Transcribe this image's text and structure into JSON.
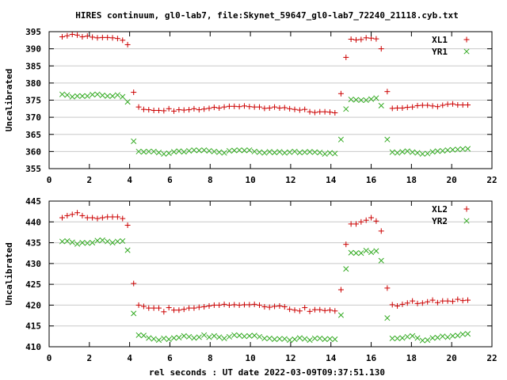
{
  "title": "HIRES continuum, gl0-lab7, file:Skynet_59647_gl0-lab7_72240_21118.cyb.txt",
  "colors": {
    "plus": "#cc0000",
    "cross": "#33aa22",
    "axis": "#000000",
    "grid": "#c8c8c8"
  },
  "chart_data": [
    {
      "type": "scatter",
      "xlabel": "",
      "ylabel": "Uncalibrated",
      "xlim": [
        0,
        22
      ],
      "ylim": [
        355,
        395
      ],
      "xticks": [
        0,
        2,
        4,
        6,
        8,
        10,
        12,
        14,
        16,
        18,
        20,
        22
      ],
      "yticks": [
        355,
        360,
        365,
        370,
        375,
        380,
        385,
        390,
        395
      ],
      "legend": "top-right",
      "series": [
        {
          "name": "XL1",
          "marker": "plus",
          "x": [
            0.65,
            0.9,
            1.15,
            1.4,
            1.65,
            1.9,
            2.15,
            2.4,
            2.65,
            2.9,
            3.15,
            3.4,
            3.65,
            3.9,
            4.2,
            4.45,
            4.7,
            4.95,
            5.2,
            5.45,
            5.7,
            5.95,
            6.2,
            6.45,
            6.7,
            6.95,
            7.2,
            7.45,
            7.7,
            7.95,
            8.2,
            8.45,
            8.7,
            8.95,
            9.2,
            9.45,
            9.7,
            9.95,
            10.2,
            10.45,
            10.7,
            10.95,
            11.2,
            11.45,
            11.7,
            11.95,
            12.2,
            12.45,
            12.7,
            12.95,
            13.2,
            13.45,
            13.7,
            13.95,
            14.2,
            14.5,
            14.75,
            15.0,
            15.25,
            15.5,
            15.75,
            16.0,
            16.25,
            16.5,
            16.8,
            17.05,
            17.3,
            17.55,
            17.8,
            18.05,
            18.3,
            18.55,
            18.8,
            19.05,
            19.3,
            19.55,
            19.8,
            20.05,
            20.3,
            20.55,
            20.8
          ],
          "y": [
            393.5,
            393.8,
            394.2,
            394.0,
            393.5,
            393.7,
            393.4,
            393.2,
            393.3,
            393.3,
            393.2,
            393.0,
            392.5,
            391.2,
            377.3,
            373.0,
            372.3,
            372.2,
            372.0,
            372.0,
            371.9,
            372.5,
            371.8,
            372.2,
            372.1,
            372.2,
            372.5,
            372.2,
            372.4,
            372.6,
            372.9,
            372.7,
            373.0,
            373.2,
            373.2,
            373.1,
            373.3,
            373.1,
            373.0,
            373.0,
            372.6,
            372.7,
            373.0,
            372.7,
            372.8,
            372.5,
            372.3,
            372.1,
            372.3,
            371.6,
            371.4,
            371.6,
            371.6,
            371.5,
            371.3,
            376.9,
            387.5,
            392.8,
            392.6,
            392.7,
            393.2,
            393.1,
            392.9,
            390.0,
            377.5,
            372.6,
            372.7,
            372.7,
            372.9,
            373.0,
            373.4,
            373.5,
            373.5,
            373.3,
            373.1,
            373.5,
            373.8,
            373.9,
            373.6,
            373.6,
            373.6
          ]
        },
        {
          "name": "YR1",
          "marker": "cross",
          "x": [
            0.65,
            0.9,
            1.15,
            1.4,
            1.65,
            1.9,
            2.15,
            2.4,
            2.65,
            2.9,
            3.15,
            3.4,
            3.65,
            3.9,
            4.2,
            4.45,
            4.7,
            4.95,
            5.2,
            5.45,
            5.7,
            5.95,
            6.2,
            6.45,
            6.7,
            6.95,
            7.2,
            7.45,
            7.7,
            7.95,
            8.2,
            8.45,
            8.7,
            8.95,
            9.2,
            9.45,
            9.7,
            9.95,
            10.2,
            10.45,
            10.7,
            10.95,
            11.2,
            11.45,
            11.7,
            11.95,
            12.2,
            12.45,
            12.7,
            12.95,
            13.2,
            13.45,
            13.7,
            13.95,
            14.2,
            14.5,
            14.75,
            15.0,
            15.25,
            15.5,
            15.75,
            16.0,
            16.25,
            16.5,
            16.8,
            17.05,
            17.3,
            17.55,
            17.8,
            18.05,
            18.3,
            18.55,
            18.8,
            19.05,
            19.3,
            19.55,
            19.8,
            20.05,
            20.3,
            20.55,
            20.8
          ],
          "y": [
            376.7,
            376.5,
            376.0,
            376.2,
            376.2,
            376.2,
            376.6,
            376.7,
            376.4,
            376.2,
            376.2,
            376.5,
            376.0,
            374.5,
            363.0,
            360.0,
            359.9,
            360.0,
            360.0,
            359.7,
            359.3,
            359.5,
            359.9,
            360.1,
            359.9,
            360.2,
            360.4,
            360.3,
            360.4,
            360.2,
            360.0,
            359.8,
            359.6,
            360.2,
            360.3,
            360.4,
            360.3,
            360.4,
            360.0,
            359.8,
            359.6,
            359.9,
            359.7,
            359.9,
            359.6,
            359.8,
            360.0,
            359.7,
            359.8,
            359.9,
            359.8,
            359.7,
            359.3,
            359.6,
            359.4,
            363.5,
            372.4,
            375.2,
            375.1,
            375.0,
            375.0,
            375.3,
            375.6,
            373.4,
            363.5,
            359.8,
            359.6,
            359.9,
            360.1,
            359.8,
            359.6,
            359.3,
            359.4,
            359.9,
            360.1,
            360.2,
            360.4,
            360.5,
            360.6,
            360.7,
            360.8
          ]
        }
      ]
    },
    {
      "type": "scatter",
      "xlabel": "rel seconds : UT date 2022-03-09T09:37:51.130",
      "ylabel": "Uncalibrated",
      "xlim": [
        0,
        22
      ],
      "ylim": [
        410,
        445
      ],
      "xticks": [
        0,
        2,
        4,
        6,
        8,
        10,
        12,
        14,
        16,
        18,
        20,
        22
      ],
      "yticks": [
        410,
        415,
        420,
        425,
        430,
        435,
        440,
        445
      ],
      "legend": "top-right",
      "series": [
        {
          "name": "XL2",
          "marker": "plus",
          "x": [
            0.65,
            0.9,
            1.15,
            1.4,
            1.65,
            1.9,
            2.15,
            2.4,
            2.65,
            2.9,
            3.15,
            3.4,
            3.65,
            3.9,
            4.2,
            4.45,
            4.7,
            4.95,
            5.2,
            5.45,
            5.7,
            5.95,
            6.2,
            6.45,
            6.7,
            6.95,
            7.2,
            7.45,
            7.7,
            7.95,
            8.2,
            8.45,
            8.7,
            8.95,
            9.2,
            9.45,
            9.7,
            9.95,
            10.2,
            10.45,
            10.7,
            10.95,
            11.2,
            11.45,
            11.7,
            11.95,
            12.2,
            12.45,
            12.7,
            12.95,
            13.2,
            13.45,
            13.7,
            13.95,
            14.2,
            14.5,
            14.75,
            15.0,
            15.25,
            15.5,
            15.75,
            16.0,
            16.25,
            16.5,
            16.8,
            17.05,
            17.3,
            17.55,
            17.8,
            18.05,
            18.3,
            18.55,
            18.8,
            19.05,
            19.3,
            19.55,
            19.8,
            20.05,
            20.3,
            20.55,
            20.8
          ],
          "y": [
            441.0,
            441.5,
            441.8,
            442.2,
            441.5,
            441.0,
            441.0,
            440.8,
            441.0,
            441.2,
            441.2,
            441.2,
            440.8,
            439.2,
            425.2,
            420.0,
            419.7,
            419.3,
            419.3,
            419.3,
            418.4,
            419.4,
            418.8,
            418.8,
            419.0,
            419.3,
            419.3,
            419.5,
            419.6,
            419.8,
            420.0,
            420.0,
            420.2,
            420.0,
            420.1,
            420.0,
            420.1,
            420.1,
            420.2,
            420.0,
            419.6,
            419.5,
            419.7,
            419.8,
            419.6,
            419.0,
            418.8,
            418.6,
            419.4,
            418.5,
            418.9,
            418.9,
            418.7,
            418.8,
            418.6,
            423.7,
            434.6,
            439.5,
            439.5,
            440.0,
            440.4,
            441.0,
            440.2,
            437.8,
            424.1,
            420.1,
            419.8,
            420.2,
            420.5,
            421.0,
            420.4,
            420.5,
            420.8,
            421.2,
            420.6,
            421.0,
            421.0,
            420.9,
            421.4,
            421.1,
            421.2
          ]
        },
        {
          "name": "YR2",
          "marker": "cross",
          "x": [
            0.65,
            0.9,
            1.15,
            1.4,
            1.65,
            1.9,
            2.15,
            2.4,
            2.65,
            2.9,
            3.15,
            3.4,
            3.65,
            3.9,
            4.2,
            4.45,
            4.7,
            4.95,
            5.2,
            5.45,
            5.7,
            5.95,
            6.2,
            6.45,
            6.7,
            6.95,
            7.2,
            7.45,
            7.7,
            7.95,
            8.2,
            8.45,
            8.7,
            8.95,
            9.2,
            9.45,
            9.7,
            9.95,
            10.2,
            10.45,
            10.7,
            10.95,
            11.2,
            11.45,
            11.7,
            11.95,
            12.2,
            12.45,
            12.7,
            12.95,
            13.2,
            13.45,
            13.7,
            13.95,
            14.2,
            14.5,
            14.75,
            15.0,
            15.25,
            15.5,
            15.75,
            16.0,
            16.25,
            16.5,
            16.8,
            17.05,
            17.3,
            17.55,
            17.8,
            18.05,
            18.3,
            18.55,
            18.8,
            19.05,
            19.3,
            19.55,
            19.8,
            20.05,
            20.3,
            20.55,
            20.8
          ],
          "y": [
            435.3,
            435.4,
            435.1,
            434.7,
            435.0,
            434.9,
            435.0,
            435.5,
            435.6,
            435.3,
            435.0,
            435.3,
            435.4,
            433.2,
            418.0,
            412.8,
            412.7,
            412.1,
            411.9,
            411.6,
            412.0,
            411.8,
            412.1,
            412.2,
            412.6,
            412.4,
            412.1,
            412.3,
            412.8,
            412.3,
            412.6,
            412.3,
            412.0,
            412.4,
            412.8,
            412.7,
            412.5,
            412.6,
            412.7,
            412.4,
            412.0,
            412.0,
            411.8,
            411.9,
            411.9,
            411.6,
            411.8,
            412.1,
            411.9,
            411.6,
            412.0,
            412.0,
            411.8,
            411.9,
            411.8,
            417.6,
            428.7,
            432.6,
            432.5,
            432.5,
            433.1,
            432.7,
            433.0,
            430.7,
            416.9,
            412.0,
            412.0,
            412.1,
            412.4,
            412.6,
            412.1,
            411.5,
            411.6,
            412.1,
            412.2,
            412.5,
            412.3,
            412.6,
            412.7,
            413.0,
            413.1
          ]
        }
      ]
    }
  ]
}
